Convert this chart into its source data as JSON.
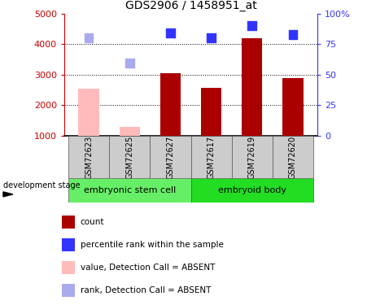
{
  "title": "GDS2906 / 1458951_at",
  "samples": [
    "GSM72623",
    "GSM72625",
    "GSM72627",
    "GSM72617",
    "GSM72619",
    "GSM72620"
  ],
  "groups": [
    {
      "label": "embryonic stem cell",
      "color": "#66ee66"
    },
    {
      "label": "embryoid body",
      "color": "#22dd22"
    }
  ],
  "count_values": [
    2550,
    1280,
    3050,
    2580,
    4200,
    2900
  ],
  "count_absent": [
    true,
    true,
    false,
    false,
    false,
    false
  ],
  "rank_values": [
    4200,
    3380,
    4370,
    4200,
    4620,
    4320
  ],
  "rank_absent": [
    true,
    true,
    false,
    false,
    false,
    false
  ],
  "ylim_left": [
    1000,
    5000
  ],
  "ylim_right": [
    0,
    100
  ],
  "yticks_left": [
    1000,
    2000,
    3000,
    4000,
    5000
  ],
  "yticks_right": [
    0,
    25,
    50,
    75,
    100
  ],
  "yticklabels_right": [
    "0",
    "25",
    "50",
    "75",
    "100%"
  ],
  "left_axis_color": "#cc0000",
  "right_axis_color": "#3333ff",
  "bar_color_present": "#aa0000",
  "bar_color_absent": "#ffbbbb",
  "dot_color_present": "#3333ff",
  "dot_color_absent": "#aaaaee",
  "bar_width": 0.5,
  "dot_size": 60,
  "xlabel_stage": "development stage",
  "legend_items": [
    {
      "color": "#aa0000",
      "label": "count"
    },
    {
      "color": "#3333ff",
      "label": "percentile rank within the sample"
    },
    {
      "color": "#ffbbbb",
      "label": "value, Detection Call = ABSENT"
    },
    {
      "color": "#aaaaee",
      "label": "rank, Detection Call = ABSENT"
    }
  ],
  "group_border_color": "#555555",
  "sample_box_color": "#cccccc"
}
